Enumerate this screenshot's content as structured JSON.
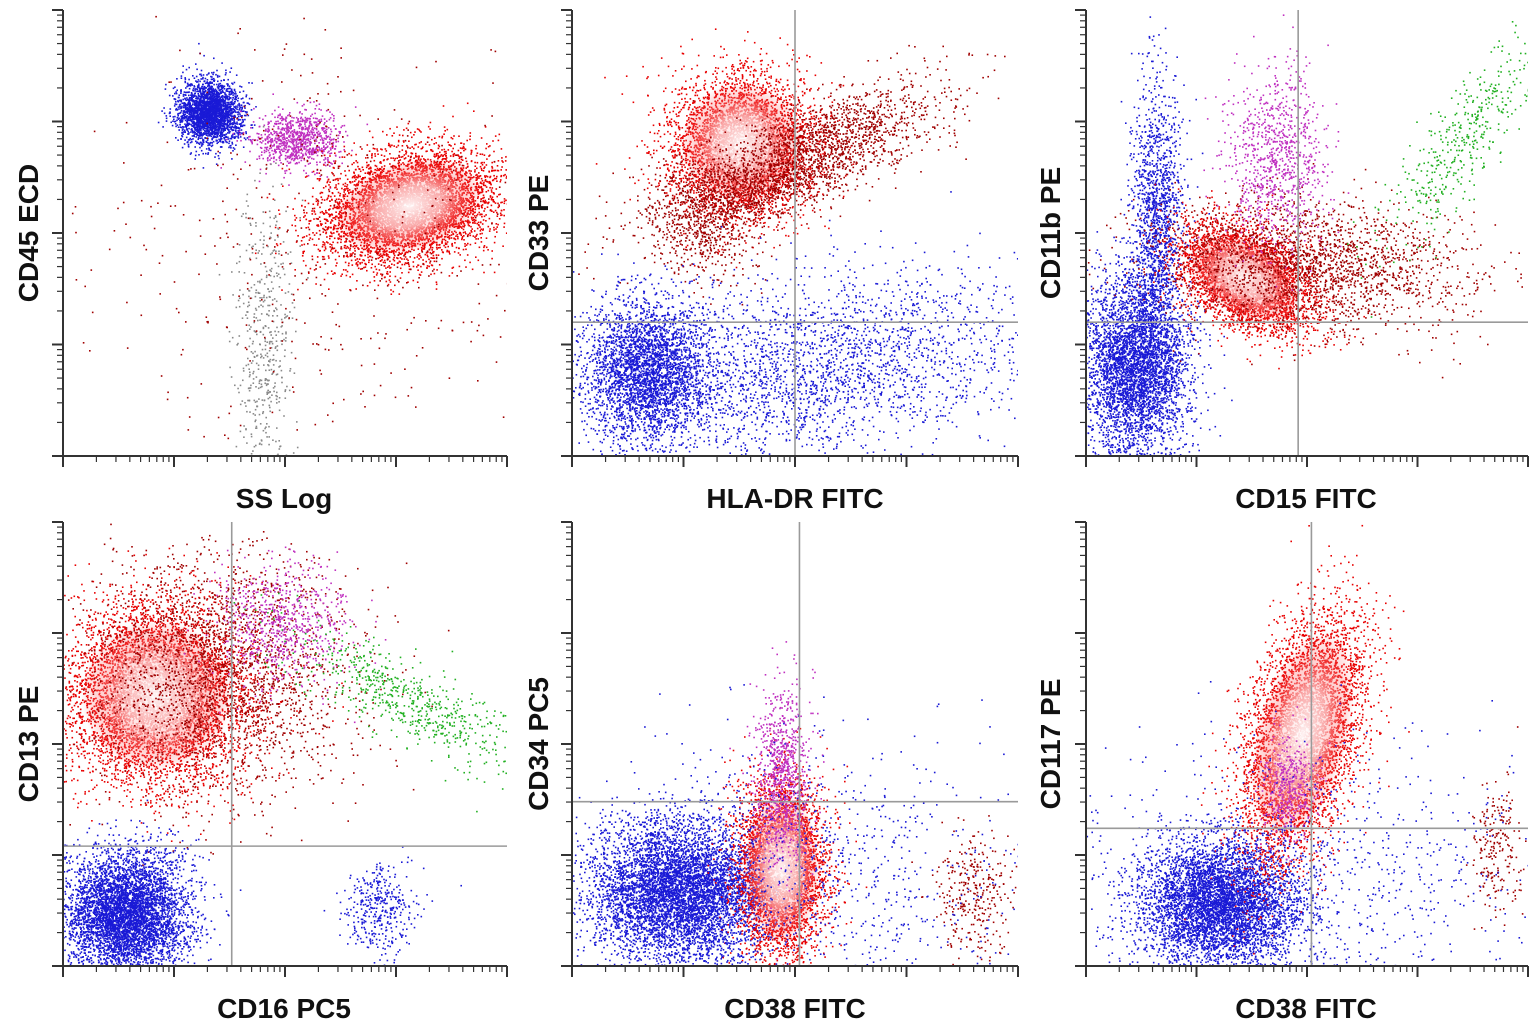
{
  "figure": {
    "panel_count": 6,
    "layout": "2 rows x 3 columns",
    "background_color": "#ffffff",
    "population_colors": {
      "blue": "#1a1ad6",
      "red": "#e80000",
      "dark_red": "#a00000",
      "magenta": "#c030c0",
      "green": "#22b022",
      "grey": "#8a8a8a"
    }
  },
  "chart_data": [
    {
      "type": "scatter",
      "xlabel": "SS Log",
      "ylabel": "CD45 ECD",
      "x_scale": "log",
      "y_scale": "log",
      "x_decades": 4,
      "y_decades": 4,
      "gates": [],
      "populations": [
        {
          "color": "blue",
          "cx": 0.33,
          "cy": 0.77,
          "sx": 0.035,
          "sy": 0.035,
          "rot": 15,
          "n": 2600,
          "core": false
        },
        {
          "color": "magenta",
          "cx": 0.53,
          "cy": 0.71,
          "sx": 0.05,
          "sy": 0.03,
          "rot": 0,
          "n": 900,
          "core": false
        },
        {
          "color": "red",
          "cx": 0.78,
          "cy": 0.56,
          "sx": 0.1,
          "sy": 0.06,
          "rot": 15,
          "n": 5500,
          "core": true
        },
        {
          "color": "grey",
          "cx": 0.45,
          "cy": 0.25,
          "sx": 0.03,
          "sy": 0.16,
          "rot": 0,
          "n": 500,
          "core": false
        },
        {
          "color": "dark_red",
          "cx": 0.6,
          "cy": 0.5,
          "sx": 0.25,
          "sy": 0.22,
          "rot": 0,
          "n": 500,
          "core": false
        }
      ]
    },
    {
      "type": "scatter",
      "xlabel": "HLA-DR FITC",
      "ylabel": "CD33 PE",
      "x_scale": "log",
      "y_scale": "log",
      "x_decades": 4,
      "y_decades": 4,
      "gates": [
        {
          "x": 0.5
        },
        {
          "y": 0.3
        }
      ],
      "populations": [
        {
          "color": "red",
          "cx": 0.38,
          "cy": 0.7,
          "sx": 0.08,
          "sy": 0.08,
          "rot": -25,
          "n": 4200,
          "core": true
        },
        {
          "color": "dark_red",
          "cx": 0.5,
          "cy": 0.66,
          "sx": 0.17,
          "sy": 0.05,
          "rot": 25,
          "n": 2400,
          "core": false
        },
        {
          "color": "dark_red",
          "cx": 0.3,
          "cy": 0.53,
          "sx": 0.06,
          "sy": 0.07,
          "rot": 0,
          "n": 600,
          "core": false
        },
        {
          "color": "blue",
          "cx": 0.17,
          "cy": 0.19,
          "sx": 0.07,
          "sy": 0.08,
          "rot": 0,
          "n": 3200,
          "core": false
        },
        {
          "color": "blue",
          "cx": 0.55,
          "cy": 0.2,
          "sx": 0.25,
          "sy": 0.1,
          "rot": 8,
          "n": 2600,
          "core": false
        }
      ]
    },
    {
      "type": "scatter",
      "xlabel": "CD15 FITC",
      "ylabel": "CD11b PE",
      "x_scale": "log",
      "y_scale": "log",
      "x_decades": 4,
      "y_decades": 4,
      "gates": [
        {
          "x": 0.48
        },
        {
          "y": 0.3
        }
      ],
      "populations": [
        {
          "color": "blue",
          "cx": 0.11,
          "cy": 0.2,
          "sx": 0.06,
          "sy": 0.1,
          "rot": 0,
          "n": 4000,
          "core": false
        },
        {
          "color": "blue",
          "cx": 0.16,
          "cy": 0.52,
          "sx": 0.03,
          "sy": 0.17,
          "rot": 0,
          "n": 1600,
          "core": false
        },
        {
          "color": "red",
          "cx": 0.36,
          "cy": 0.4,
          "sx": 0.08,
          "sy": 0.05,
          "rot": -30,
          "n": 4000,
          "core": true
        },
        {
          "color": "dark_red",
          "cx": 0.5,
          "cy": 0.43,
          "sx": 0.18,
          "sy": 0.07,
          "rot": -5,
          "n": 2200,
          "core": false
        },
        {
          "color": "magenta",
          "cx": 0.43,
          "cy": 0.66,
          "sx": 0.06,
          "sy": 0.1,
          "rot": 0,
          "n": 900,
          "core": false
        },
        {
          "color": "green",
          "cx": 0.86,
          "cy": 0.72,
          "sx": 0.04,
          "sy": 0.15,
          "rot": -35,
          "n": 450,
          "core": false
        }
      ]
    },
    {
      "type": "scatter",
      "xlabel": "CD16 PC5",
      "ylabel": "CD13 PE",
      "x_scale": "log",
      "y_scale": "log",
      "x_decades": 4,
      "y_decades": 4,
      "gates": [
        {
          "x": 0.38
        },
        {
          "y": 0.27
        }
      ],
      "populations": [
        {
          "color": "red",
          "cx": 0.21,
          "cy": 0.61,
          "sx": 0.1,
          "sy": 0.1,
          "rot": -20,
          "n": 6000,
          "core": true
        },
        {
          "color": "dark_red",
          "cx": 0.35,
          "cy": 0.66,
          "sx": 0.15,
          "sy": 0.14,
          "rot": -20,
          "n": 2400,
          "core": false
        },
        {
          "color": "magenta",
          "cx": 0.49,
          "cy": 0.77,
          "sx": 0.07,
          "sy": 0.07,
          "rot": 0,
          "n": 700,
          "core": false
        },
        {
          "color": "blue",
          "cx": 0.14,
          "cy": 0.12,
          "sx": 0.07,
          "sy": 0.07,
          "rot": 0,
          "n": 5200,
          "core": false
        },
        {
          "color": "blue",
          "cx": 0.71,
          "cy": 0.13,
          "sx": 0.04,
          "sy": 0.05,
          "rot": 0,
          "n": 380,
          "core": false
        },
        {
          "color": "green",
          "cx": 0.79,
          "cy": 0.59,
          "sx": 0.15,
          "sy": 0.04,
          "rot": -28,
          "n": 650,
          "core": false
        }
      ]
    },
    {
      "type": "scatter",
      "xlabel": "CD38  FITC",
      "ylabel": "CD34 PC5",
      "x_scale": "log",
      "y_scale": "log",
      "x_decades": 4,
      "y_decades": 4,
      "gates": [
        {
          "x": 0.51
        },
        {
          "y": 0.37
        }
      ],
      "populations": [
        {
          "color": "blue",
          "cx": 0.24,
          "cy": 0.17,
          "sx": 0.1,
          "sy": 0.08,
          "rot": 0,
          "n": 6000,
          "core": false
        },
        {
          "color": "red",
          "cx": 0.47,
          "cy": 0.22,
          "sx": 0.05,
          "sy": 0.1,
          "rot": 0,
          "n": 4000,
          "core": true
        },
        {
          "color": "magenta",
          "cx": 0.47,
          "cy": 0.43,
          "sx": 0.03,
          "sy": 0.1,
          "rot": 0,
          "n": 900,
          "core": false
        },
        {
          "color": "dark_red",
          "cx": 0.9,
          "cy": 0.16,
          "sx": 0.04,
          "sy": 0.07,
          "rot": 0,
          "n": 320,
          "core": false
        },
        {
          "color": "blue",
          "cx": 0.5,
          "cy": 0.2,
          "sx": 0.25,
          "sy": 0.15,
          "rot": 0,
          "n": 1000,
          "core": false
        }
      ]
    },
    {
      "type": "scatter",
      "xlabel": "CD38  FITC",
      "ylabel": "CD117 PE",
      "x_scale": "log",
      "y_scale": "log",
      "x_decades": 4,
      "y_decades": 4,
      "gates": [
        {
          "x": 0.51
        },
        {
          "y": 0.31
        }
      ],
      "populations": [
        {
          "color": "blue",
          "cx": 0.3,
          "cy": 0.14,
          "sx": 0.09,
          "sy": 0.07,
          "rot": 0,
          "n": 5200,
          "core": false
        },
        {
          "color": "red",
          "cx": 0.49,
          "cy": 0.52,
          "sx": 0.06,
          "sy": 0.14,
          "rot": -15,
          "n": 5200,
          "core": true
        },
        {
          "color": "magenta",
          "cx": 0.46,
          "cy": 0.4,
          "sx": 0.03,
          "sy": 0.06,
          "rot": 0,
          "n": 400,
          "core": false
        },
        {
          "color": "dark_red",
          "cx": 0.93,
          "cy": 0.27,
          "sx": 0.03,
          "sy": 0.08,
          "rot": 0,
          "n": 220,
          "core": false
        },
        {
          "color": "blue",
          "cx": 0.5,
          "cy": 0.2,
          "sx": 0.25,
          "sy": 0.15,
          "rot": 0,
          "n": 900,
          "core": false
        }
      ]
    }
  ]
}
